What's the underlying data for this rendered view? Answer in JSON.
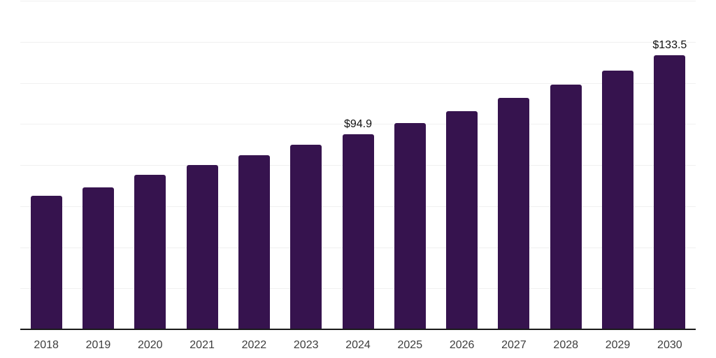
{
  "chart_data": {
    "type": "bar",
    "title": "",
    "xlabel": "",
    "ylabel": "",
    "categories": [
      "2018",
      "2019",
      "2020",
      "2021",
      "2022",
      "2023",
      "2024",
      "2025",
      "2026",
      "2027",
      "2028",
      "2029",
      "2030"
    ],
    "values": [
      65.0,
      69.2,
      75.3,
      80.1,
      84.7,
      89.8,
      94.9,
      100.5,
      106.3,
      112.6,
      119.1,
      126.1,
      133.5
    ],
    "bar_labels": [
      "",
      "",
      "",
      "",
      "",
      "",
      "$94.9",
      "",
      "",
      "",
      "",
      "",
      "$133.5"
    ],
    "ylim": [
      0,
      160
    ],
    "grid_step": 20,
    "grid": true,
    "legend": false,
    "legend_position": "none",
    "y_axis_labels_visible": false
  },
  "style": {
    "bar_color": "#36134E",
    "gridline_color": "#f0f0f0",
    "axis_line_color": "#1a1a1a",
    "x_label_color": "#3d3d3d",
    "data_label_color": "#111111",
    "background": "#ffffff"
  }
}
